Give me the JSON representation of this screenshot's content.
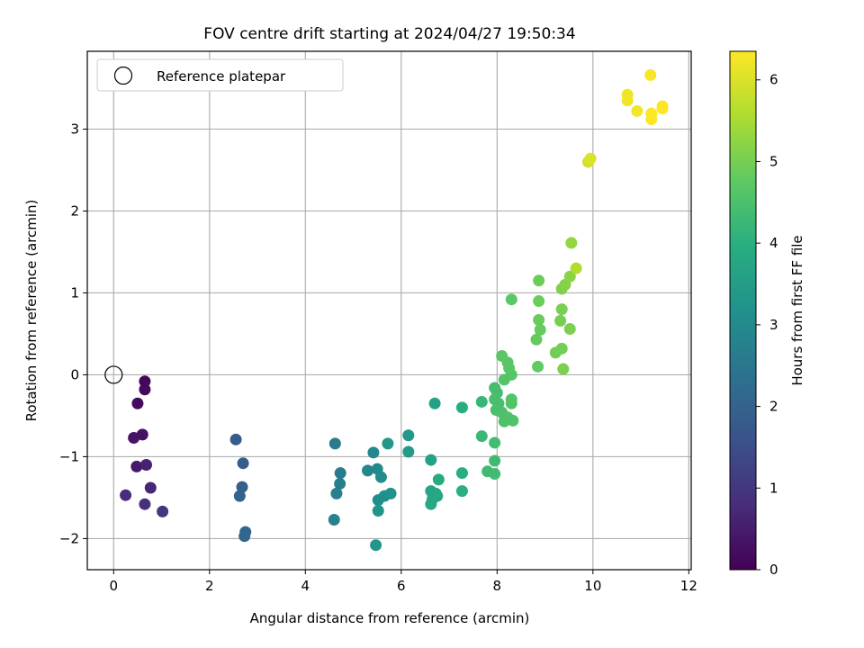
{
  "chart_data": {
    "type": "scatter",
    "title": "FOV centre drift starting at 2024/04/27 19:50:34",
    "xlabel": "Angular distance from reference (arcmin)",
    "ylabel": "Rotation from reference (arcmin)",
    "xlim": [
      -0.55,
      12.05
    ],
    "ylim": [
      -2.38,
      3.95
    ],
    "xticks": [
      "0",
      "2",
      "4",
      "6",
      "8",
      "10",
      "12"
    ],
    "yticks": [
      "−2",
      "−1",
      "0",
      "1",
      "2",
      "3"
    ],
    "grid": true,
    "legend": {
      "placement": "top-left",
      "entries": [
        "Reference platepar"
      ]
    },
    "reference_point": {
      "x": 0,
      "y": 0
    },
    "colorbar": {
      "label": "Hours from first FF file",
      "range": [
        0,
        6.35
      ],
      "ticks": [
        "0",
        "1",
        "2",
        "3",
        "4",
        "5",
        "6"
      ],
      "colormap": "viridis"
    },
    "points": [
      {
        "x": 0.65,
        "y": -0.08,
        "h": 0.1
      },
      {
        "x": 0.65,
        "y": -0.18,
        "h": 0.15
      },
      {
        "x": 0.5,
        "y": -0.35,
        "h": 0.2
      },
      {
        "x": 0.6,
        "y": -0.73,
        "h": 0.3
      },
      {
        "x": 0.42,
        "y": -0.77,
        "h": 0.35
      },
      {
        "x": 0.48,
        "y": -1.12,
        "h": 0.45
      },
      {
        "x": 0.68,
        "y": -1.1,
        "h": 0.6
      },
      {
        "x": 0.77,
        "y": -1.38,
        "h": 0.7
      },
      {
        "x": 0.25,
        "y": -1.47,
        "h": 0.8
      },
      {
        "x": 0.65,
        "y": -1.58,
        "h": 0.85
      },
      {
        "x": 1.02,
        "y": -1.67,
        "h": 1.0
      },
      {
        "x": 2.55,
        "y": -0.79,
        "h": 1.8
      },
      {
        "x": 2.7,
        "y": -1.08,
        "h": 1.85
      },
      {
        "x": 2.68,
        "y": -1.37,
        "h": 1.9
      },
      {
        "x": 2.63,
        "y": -1.48,
        "h": 2.0
      },
      {
        "x": 2.75,
        "y": -1.92,
        "h": 2.05
      },
      {
        "x": 2.73,
        "y": -1.97,
        "h": 2.1
      },
      {
        "x": 4.62,
        "y": -0.84,
        "h": 2.6
      },
      {
        "x": 4.73,
        "y": -1.2,
        "h": 2.65
      },
      {
        "x": 4.72,
        "y": -1.33,
        "h": 2.7
      },
      {
        "x": 4.65,
        "y": -1.45,
        "h": 2.75
      },
      {
        "x": 4.6,
        "y": -1.77,
        "h": 2.8
      },
      {
        "x": 5.3,
        "y": -1.17,
        "h": 2.9
      },
      {
        "x": 5.42,
        "y": -0.95,
        "h": 2.95
      },
      {
        "x": 5.5,
        "y": -1.15,
        "h": 3.0
      },
      {
        "x": 5.58,
        "y": -1.25,
        "h": 3.05
      },
      {
        "x": 5.52,
        "y": -1.53,
        "h": 3.1
      },
      {
        "x": 5.65,
        "y": -1.48,
        "h": 3.15
      },
      {
        "x": 5.78,
        "y": -1.45,
        "h": 3.2
      },
      {
        "x": 5.52,
        "y": -1.66,
        "h": 3.25
      },
      {
        "x": 5.47,
        "y": -2.08,
        "h": 3.3
      },
      {
        "x": 5.72,
        "y": -0.84,
        "h": 3.35
      },
      {
        "x": 6.15,
        "y": -0.74,
        "h": 3.4
      },
      {
        "x": 6.15,
        "y": -0.94,
        "h": 3.45
      },
      {
        "x": 6.62,
        "y": -1.04,
        "h": 3.6
      },
      {
        "x": 6.7,
        "y": -0.35,
        "h": 3.65
      },
      {
        "x": 6.62,
        "y": -1.42,
        "h": 3.7
      },
      {
        "x": 6.72,
        "y": -1.45,
        "h": 3.72
      },
      {
        "x": 6.65,
        "y": -1.52,
        "h": 3.75
      },
      {
        "x": 6.75,
        "y": -1.48,
        "h": 3.78
      },
      {
        "x": 6.62,
        "y": -1.58,
        "h": 3.8
      },
      {
        "x": 6.78,
        "y": -1.28,
        "h": 3.82
      },
      {
        "x": 7.27,
        "y": -0.4,
        "h": 3.95
      },
      {
        "x": 7.27,
        "y": -1.2,
        "h": 3.97
      },
      {
        "x": 7.27,
        "y": -1.42,
        "h": 4.0
      },
      {
        "x": 7.68,
        "y": -0.33,
        "h": 4.2
      },
      {
        "x": 7.68,
        "y": -0.75,
        "h": 4.25
      },
      {
        "x": 7.8,
        "y": -1.18,
        "h": 4.3
      },
      {
        "x": 7.95,
        "y": -1.05,
        "h": 4.32
      },
      {
        "x": 7.95,
        "y": -1.21,
        "h": 4.35
      },
      {
        "x": 7.95,
        "y": -0.83,
        "h": 4.38
      },
      {
        "x": 7.95,
        "y": -0.16,
        "h": 4.4
      },
      {
        "x": 8.0,
        "y": -0.22,
        "h": 4.42
      },
      {
        "x": 7.95,
        "y": -0.3,
        "h": 4.44
      },
      {
        "x": 8.03,
        "y": -0.35,
        "h": 4.46
      },
      {
        "x": 7.98,
        "y": -0.43,
        "h": 4.48
      },
      {
        "x": 8.1,
        "y": -0.46,
        "h": 4.5
      },
      {
        "x": 8.15,
        "y": -0.57,
        "h": 4.52
      },
      {
        "x": 8.22,
        "y": -0.52,
        "h": 4.54
      },
      {
        "x": 8.33,
        "y": -0.56,
        "h": 4.56
      },
      {
        "x": 8.3,
        "y": -0.3,
        "h": 4.58
      },
      {
        "x": 8.3,
        "y": -0.35,
        "h": 4.6
      },
      {
        "x": 8.15,
        "y": -0.06,
        "h": 4.62
      },
      {
        "x": 8.3,
        "y": 0.0,
        "h": 4.64
      },
      {
        "x": 8.25,
        "y": 0.08,
        "h": 4.66
      },
      {
        "x": 8.22,
        "y": 0.15,
        "h": 4.68
      },
      {
        "x": 8.1,
        "y": 0.23,
        "h": 4.7
      },
      {
        "x": 8.3,
        "y": 0.92,
        "h": 4.72
      },
      {
        "x": 8.85,
        "y": 0.1,
        "h": 4.8
      },
      {
        "x": 8.82,
        "y": 0.43,
        "h": 4.82
      },
      {
        "x": 8.9,
        "y": 0.55,
        "h": 4.84
      },
      {
        "x": 8.87,
        "y": 0.67,
        "h": 4.86
      },
      {
        "x": 8.87,
        "y": 0.9,
        "h": 4.88
      },
      {
        "x": 8.87,
        "y": 1.15,
        "h": 4.9
      },
      {
        "x": 9.22,
        "y": 0.27,
        "h": 4.95
      },
      {
        "x": 9.35,
        "y": 0.32,
        "h": 4.97
      },
      {
        "x": 9.32,
        "y": 0.66,
        "h": 5.0
      },
      {
        "x": 9.35,
        "y": 0.8,
        "h": 5.02
      },
      {
        "x": 9.38,
        "y": 0.07,
        "h": 5.05
      },
      {
        "x": 9.52,
        "y": 0.56,
        "h": 5.07
      },
      {
        "x": 9.35,
        "y": 1.05,
        "h": 5.1
      },
      {
        "x": 9.42,
        "y": 1.1,
        "h": 5.15
      },
      {
        "x": 9.52,
        "y": 1.2,
        "h": 5.2
      },
      {
        "x": 9.55,
        "y": 1.61,
        "h": 5.3
      },
      {
        "x": 9.65,
        "y": 1.3,
        "h": 5.6
      },
      {
        "x": 9.9,
        "y": 2.6,
        "h": 5.9
      },
      {
        "x": 9.95,
        "y": 2.64,
        "h": 6.0
      },
      {
        "x": 10.72,
        "y": 3.42,
        "h": 6.2
      },
      {
        "x": 10.72,
        "y": 3.35,
        "h": 6.22
      },
      {
        "x": 10.92,
        "y": 3.22,
        "h": 6.25
      },
      {
        "x": 11.2,
        "y": 3.66,
        "h": 6.3
      },
      {
        "x": 11.22,
        "y": 3.19,
        "h": 6.32
      },
      {
        "x": 11.22,
        "y": 3.12,
        "h": 6.34
      },
      {
        "x": 11.45,
        "y": 3.28,
        "h": 6.35
      },
      {
        "x": 11.45,
        "y": 3.25,
        "h": 6.35
      }
    ]
  }
}
